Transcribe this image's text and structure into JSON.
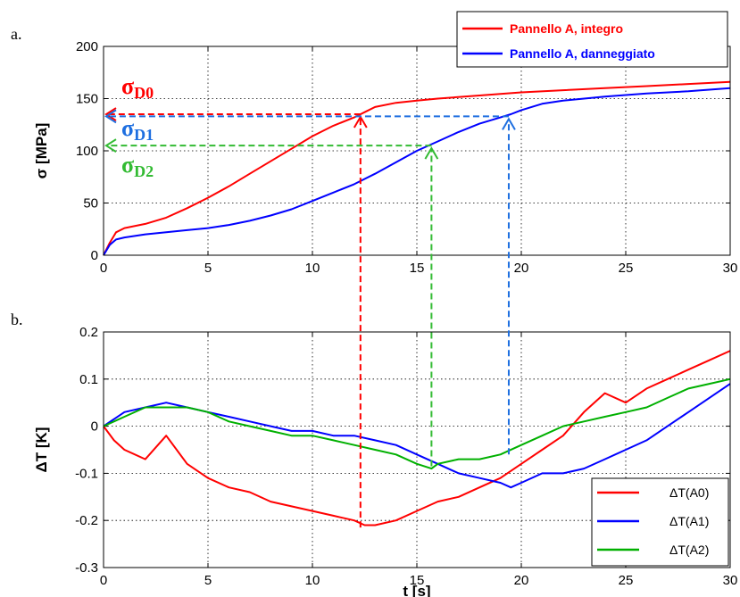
{
  "chart_data": [
    {
      "panel": "a.",
      "type": "line",
      "xlabel": "",
      "ylabel": "σ [MPa]",
      "xlim": [
        0,
        30
      ],
      "ylim": [
        0,
        200
      ],
      "xticks": [
        "0",
        "5",
        "10",
        "15",
        "20",
        "25",
        "30"
      ],
      "yticks": [
        "0",
        "50",
        "100",
        "150",
        "200"
      ],
      "grid": true,
      "legend_position": "top-right",
      "series": [
        {
          "name": "Pannello A, integro",
          "color": "#ff0000",
          "x": [
            0,
            0.3,
            0.6,
            1,
            2,
            3,
            4,
            5,
            6,
            7,
            8,
            9,
            10,
            11,
            12,
            12.5,
            13,
            14,
            15,
            16,
            18,
            20,
            22,
            24,
            26,
            28,
            30
          ],
          "y": [
            0,
            12,
            22,
            26,
            30,
            36,
            45,
            55,
            66,
            78,
            90,
            102,
            114,
            124,
            132,
            137,
            142,
            146,
            148,
            150,
            153,
            156,
            158,
            160,
            162,
            164,
            166
          ]
        },
        {
          "name": "Pannello A, danneggiato",
          "color": "#0000ff",
          "x": [
            0,
            0.3,
            0.6,
            1,
            2,
            3,
            4,
            5,
            6,
            7,
            8,
            9,
            10,
            11,
            12,
            13,
            14,
            15,
            16,
            17,
            18,
            19,
            19.5,
            20,
            21,
            22,
            24,
            26,
            28,
            30
          ],
          "y": [
            0,
            10,
            15,
            17,
            20,
            22,
            24,
            26,
            29,
            33,
            38,
            44,
            52,
            60,
            68,
            78,
            89,
            100,
            109,
            118,
            126,
            132,
            135,
            139,
            145,
            148,
            152,
            155,
            157,
            160
          ]
        }
      ],
      "annotations": [
        {
          "main": "σ",
          "sub": "D0",
          "color": "#ff0000",
          "y": 135,
          "x_end": 12.3
        },
        {
          "main": "σ",
          "sub": "D1",
          "color": "#1e6fe0",
          "y": 133,
          "x_end": 19.4
        },
        {
          "main": "σ",
          "sub": "D2",
          "color": "#33bb33",
          "y": 105,
          "x_end": 15.7
        }
      ]
    },
    {
      "panel": "b.",
      "type": "line",
      "xlabel": "t [s]",
      "ylabel": "ΔT [K]",
      "xlim": [
        0,
        30
      ],
      "ylim": [
        -0.3,
        0.2
      ],
      "xticks": [
        "0",
        "5",
        "10",
        "15",
        "20",
        "25",
        "30"
      ],
      "yticks": [
        "-0.3",
        "-0.2",
        "-0.1",
        "0",
        "0.1",
        "0.2"
      ],
      "grid": true,
      "legend_position": "bottom-right",
      "series": [
        {
          "name": "ΔT(A0)",
          "color": "#ff0000",
          "x": [
            0,
            0.5,
            1,
            2,
            3,
            4,
            5,
            6,
            7,
            8,
            9,
            10,
            11,
            12,
            12.5,
            13,
            14,
            15,
            16,
            17,
            18,
            19,
            20,
            21,
            22,
            23,
            24,
            25,
            26,
            27,
            28,
            29,
            30
          ],
          "y": [
            0,
            -0.03,
            -0.05,
            -0.07,
            -0.02,
            -0.08,
            -0.11,
            -0.13,
            -0.14,
            -0.16,
            -0.17,
            -0.18,
            -0.19,
            -0.2,
            -0.21,
            -0.21,
            -0.2,
            -0.18,
            -0.16,
            -0.15,
            -0.13,
            -0.11,
            -0.08,
            -0.05,
            -0.02,
            0.03,
            0.07,
            0.05,
            0.08,
            0.1,
            0.12,
            0.14,
            0.16
          ]
        },
        {
          "name": "ΔT(A1)",
          "color": "#0000ff",
          "x": [
            0,
            1,
            2,
            3,
            4,
            5,
            6,
            7,
            8,
            9,
            10,
            11,
            12,
            13,
            14,
            15,
            16,
            17,
            18,
            19,
            19.5,
            20,
            21,
            22,
            23,
            24,
            25,
            26,
            27,
            28,
            29,
            30
          ],
          "y": [
            0,
            0.03,
            0.04,
            0.05,
            0.04,
            0.03,
            0.02,
            0.01,
            0,
            -0.01,
            -0.01,
            -0.02,
            -0.02,
            -0.03,
            -0.04,
            -0.06,
            -0.08,
            -0.1,
            -0.11,
            -0.12,
            -0.13,
            -0.12,
            -0.1,
            -0.1,
            -0.09,
            -0.07,
            -0.05,
            -0.03,
            0,
            0.03,
            0.06,
            0.09
          ]
        },
        {
          "name": "ΔT(A2)",
          "color": "#00b000",
          "x": [
            0,
            1,
            2,
            3,
            4,
            5,
            6,
            7,
            8,
            9,
            10,
            11,
            12,
            13,
            14,
            15,
            15.7,
            16,
            17,
            18,
            19,
            20,
            21,
            22,
            23,
            24,
            25,
            26,
            27,
            28,
            29,
            30
          ],
          "y": [
            0,
            0.02,
            0.04,
            0.04,
            0.04,
            0.03,
            0.01,
            0,
            -0.01,
            -0.02,
            -0.02,
            -0.03,
            -0.04,
            -0.05,
            -0.06,
            -0.08,
            -0.09,
            -0.08,
            -0.07,
            -0.07,
            -0.06,
            -0.04,
            -0.02,
            0,
            0.01,
            0.02,
            0.03,
            0.04,
            0.06,
            0.08,
            0.09,
            0.1
          ]
        }
      ]
    }
  ]
}
